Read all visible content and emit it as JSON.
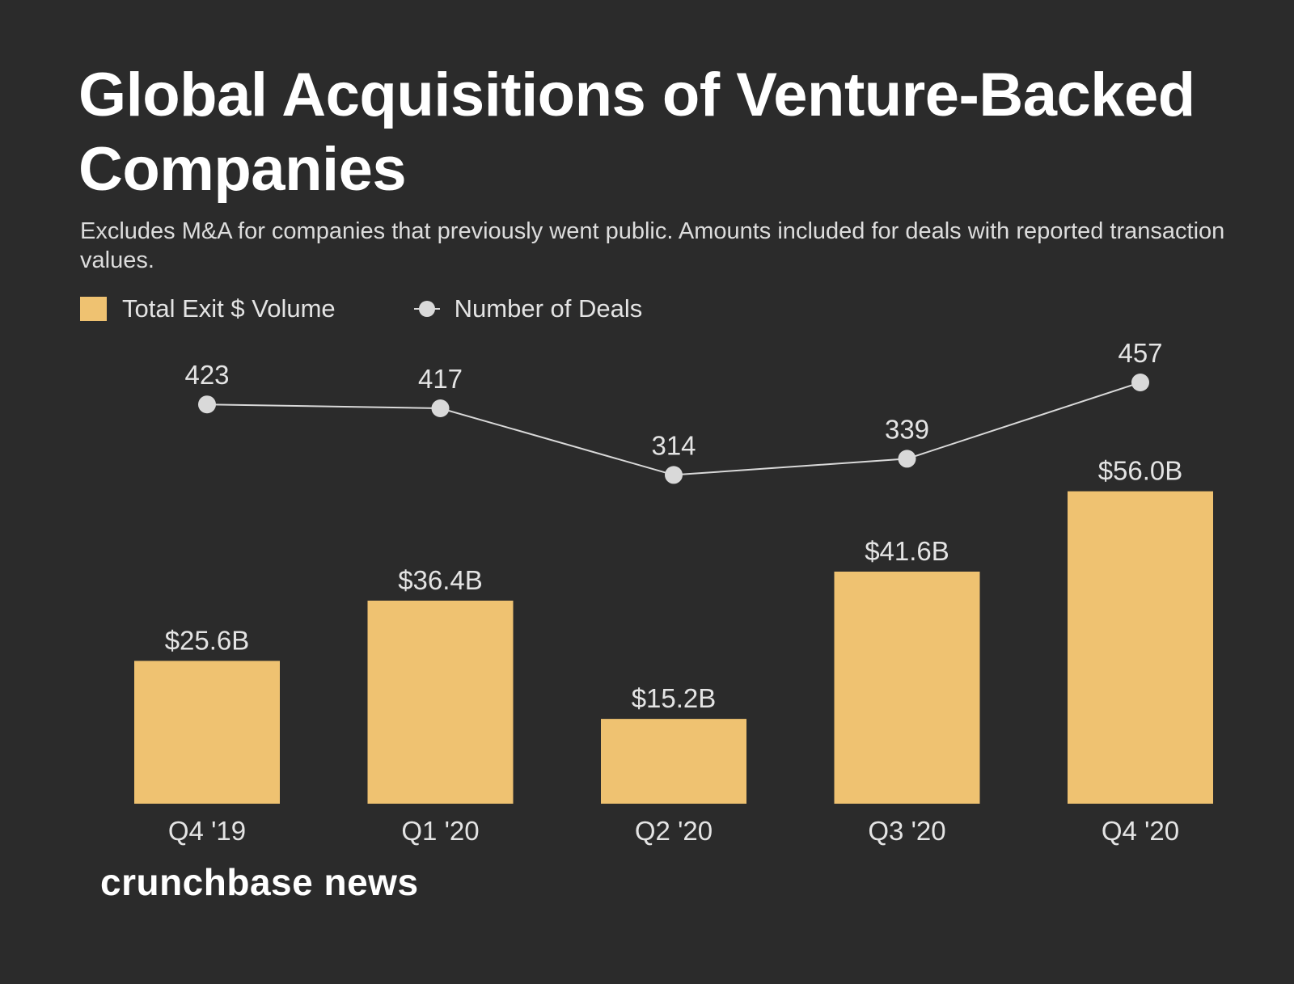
{
  "title": "Global Acquisitions of Venture-Backed Companies",
  "subtitle": "Excludes M&A for companies that previously went public. Amounts included for deals with reported transaction values.",
  "legend": {
    "bars_label": "Total Exit $ Volume",
    "line_label": "Number of Deals"
  },
  "brand": "crunchbase news",
  "colors": {
    "background": "#2b2b2b",
    "bar": "#efc271",
    "line": "#d9d9d9",
    "text": "#ffffff",
    "label": "#e4e4e4"
  },
  "chart_data": {
    "type": "bar",
    "title": "Global Acquisitions of Venture-Backed Companies",
    "categories": [
      "Q4 '19",
      "Q1 '20",
      "Q2 '20",
      "Q3 '20",
      "Q4 '20"
    ],
    "series": [
      {
        "name": "Total Exit $ Volume",
        "type": "bar",
        "unit": "$B",
        "values": [
          25.6,
          36.4,
          15.2,
          41.6,
          56.0
        ],
        "labels": [
          "$25.6B",
          "$36.4B",
          "$15.2B",
          "$41.6B",
          "$56.0B"
        ]
      },
      {
        "name": "Number of Deals",
        "type": "line",
        "values": [
          423,
          417,
          314,
          339,
          457
        ],
        "labels": [
          "423",
          "417",
          "314",
          "339",
          "457"
        ]
      }
    ],
    "legend_position": "top-left",
    "grid": false
  }
}
